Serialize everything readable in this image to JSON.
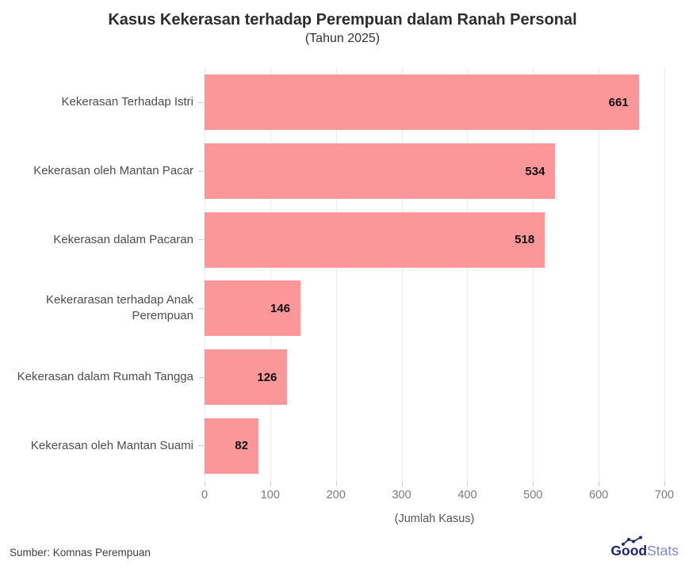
{
  "header": {
    "title": "Kasus Kekerasan terhadap Perempuan dalam Ranah Personal",
    "subtitle": "(Tahun 2025)"
  },
  "chart_data": {
    "type": "bar",
    "orientation": "horizontal",
    "title": "Kasus Kekerasan terhadap Perempuan dalam Ranah Personal",
    "subtitle": "(Tahun 2025)",
    "categories": [
      "Kekerasan Terhadap Istri",
      "Kekerasan oleh Mantan Pacar",
      "Kekerasan dalam Pacaran",
      "Kekerarasan terhadap Anak Perempuan",
      "Kekerasan dalam Rumah Tangga",
      "Kekerasan oleh Mantan Suami"
    ],
    "values": [
      661,
      534,
      518,
      146,
      126,
      82
    ],
    "xlabel": "(Jumlah Kasus)",
    "ylabel": "",
    "xlim": [
      0,
      700
    ],
    "xticks": [
      0,
      100,
      200,
      300,
      400,
      500,
      600,
      700
    ],
    "grid": true,
    "bar_color": "#fb9699",
    "gridline_color": "#ececec",
    "value_label_position": "inside-end"
  },
  "footer": {
    "source": "Sumber: Komnas Perempuan",
    "logo": {
      "bold": "Good",
      "light": "Stats"
    }
  }
}
